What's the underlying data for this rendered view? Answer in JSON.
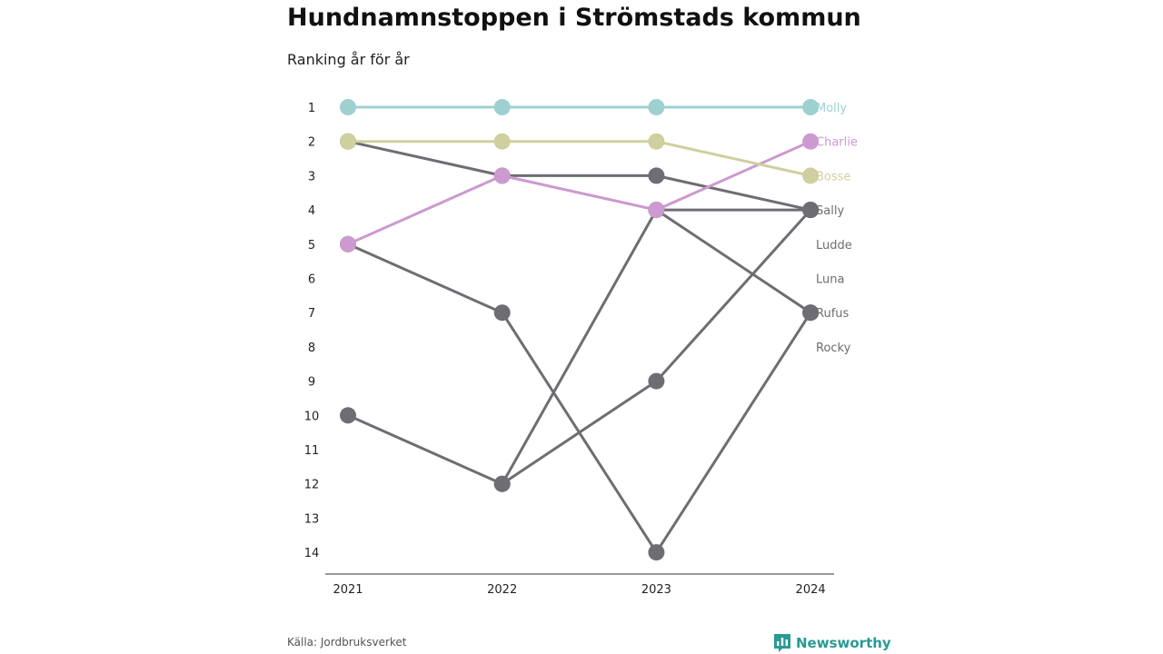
{
  "title": "Hundnamnstoppen i Strömstads kommun",
  "subtitle": "Ranking år för år",
  "source": "Källa: Jordbruksverket",
  "brand": {
    "name": "Newsworthy",
    "icon": "newsworthy-logo-icon",
    "color": "#2a9a93"
  },
  "colors": {
    "muted": "#6d6d73",
    "axis": "#333333",
    "tick": "#222222"
  },
  "chart_data": {
    "type": "line",
    "subtype": "bump",
    "x": [
      "2021",
      "2022",
      "2023",
      "2024"
    ],
    "yticks": [
      1,
      2,
      3,
      4,
      5,
      6,
      7,
      8,
      9,
      10,
      11,
      12,
      13,
      14
    ],
    "ylim": [
      1,
      14
    ],
    "y_inverted": true,
    "grid": false,
    "series": [
      {
        "name": "Molly",
        "ranks": [
          1,
          1,
          1,
          1
        ],
        "color": "#9ed0d1"
      },
      {
        "name": "Charlie",
        "ranks": [
          5,
          3,
          4,
          2
        ],
        "color": "#cc9ad0"
      },
      {
        "name": "Bosse",
        "ranks": [
          2,
          2,
          2,
          3
        ],
        "color": "#cfcf9f"
      },
      {
        "name": "Sally",
        "ranks": [
          2,
          3,
          3,
          4
        ],
        "color": "#6d6d73"
      },
      {
        "name": "Ludde",
        "ranks": [
          10,
          12,
          4,
          4
        ],
        "color": "#6d6d73"
      },
      {
        "name": "Luna",
        "ranks": [
          null,
          12,
          9,
          4
        ],
        "color": "#6d6d73"
      },
      {
        "name": "Rufus",
        "ranks": [
          null,
          null,
          4,
          7
        ],
        "color": "#6d6d73"
      },
      {
        "name": "Rocky",
        "ranks": [
          5,
          7,
          14,
          7
        ],
        "color": "#6d6d73"
      }
    ],
    "label_ranks": [
      1,
      2,
      3,
      4,
      5,
      6,
      7,
      8
    ]
  }
}
